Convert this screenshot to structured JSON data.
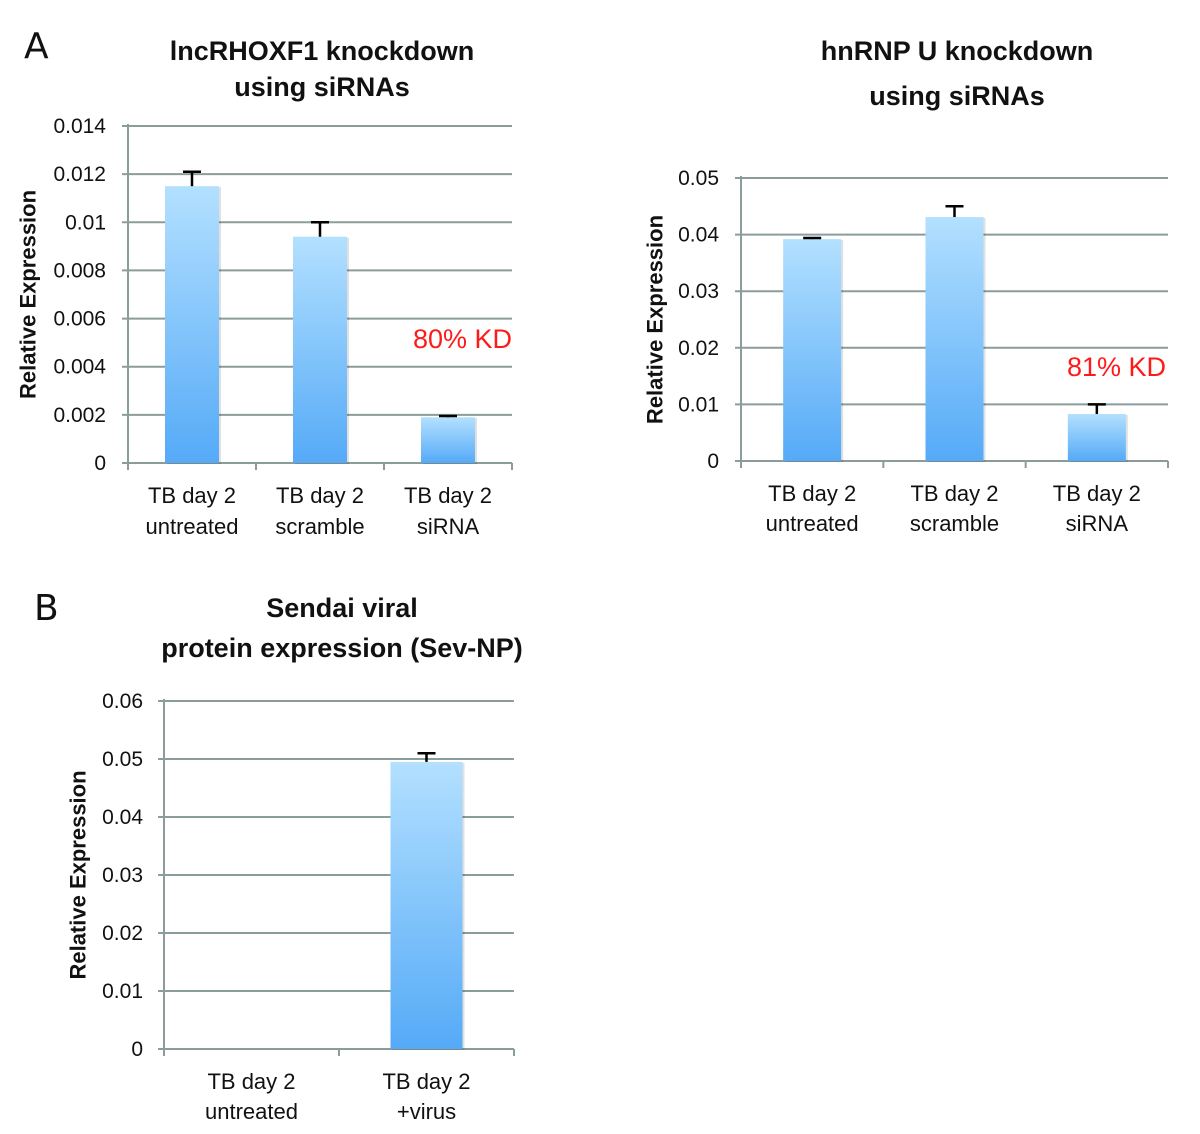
{
  "panels": [
    "A",
    "B"
  ],
  "colors": {
    "bar_top": "#b3e0ff",
    "bar_bottom": "#55aaf7",
    "grid": "#8a9d9a",
    "annotation": "#ff1a1a"
  },
  "chart_data": [
    {
      "type": "bar",
      "panel": "A",
      "title": [
        "lncRHOXF1 knockdown",
        "using siRNAs"
      ],
      "xlabel": "",
      "ylabel": "Relative Expression",
      "ylim": [
        0,
        0.014
      ],
      "yticks": [
        "0",
        "0.002",
        "0.004",
        "0.006",
        "0.008",
        "0.01",
        "0.012",
        "0.014"
      ],
      "categories": [
        [
          "TB day 2",
          "untreated"
        ],
        [
          "TB day 2",
          "scramble"
        ],
        [
          "TB day 2",
          "siRNA"
        ]
      ],
      "values": [
        0.0115,
        0.0094,
        0.0019
      ],
      "errors": [
        0.0006,
        0.0006,
        5e-05
      ],
      "annotation": "80% KD",
      "grid": true
    },
    {
      "type": "bar",
      "title": [
        "hnRNP U knockdown",
        "using siRNAs"
      ],
      "xlabel": "",
      "ylabel": "Relative Expression",
      "ylim": [
        0,
        0.05
      ],
      "yticks": [
        "0",
        "0.01",
        "0.02",
        "0.03",
        "0.04",
        "0.05"
      ],
      "categories": [
        [
          "TB day 2",
          "untreated"
        ],
        [
          "TB day 2",
          "scramble"
        ],
        [
          "TB day 2",
          "siRNA"
        ]
      ],
      "values": [
        0.0392,
        0.0431,
        0.0083
      ],
      "errors": [
        0.0002,
        0.0019,
        0.0017
      ],
      "annotation": "81% KD",
      "grid": true
    },
    {
      "type": "bar",
      "panel": "B",
      "title": [
        "Sendai viral",
        "protein expression (Sev-NP)"
      ],
      "xlabel": "",
      "ylabel": "Relative Expression",
      "ylim": [
        0,
        0.06
      ],
      "yticks": [
        "0",
        "0.01",
        "0.02",
        "0.03",
        "0.04",
        "0.05",
        "0.06"
      ],
      "categories": [
        [
          "TB day 2",
          "untreated"
        ],
        [
          "TB day 2",
          "+virus"
        ]
      ],
      "values": [
        0,
        0.0495
      ],
      "errors": [
        0,
        0.0015
      ],
      "annotation": "",
      "grid": true
    }
  ]
}
